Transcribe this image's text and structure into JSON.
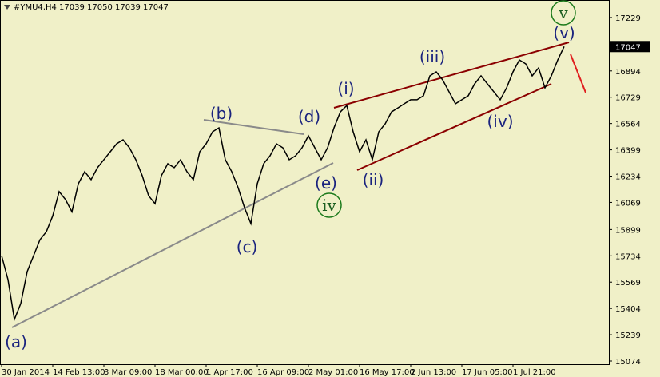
{
  "chart_data": {
    "type": "line",
    "title": "#YMU4,H4  17039 17050 17039 17047",
    "color": "#000000",
    "categories": [
      "30 Jan 2014",
      null,
      null,
      null,
      null,
      null,
      null,
      null,
      "14 Feb 13:00",
      null,
      null,
      null,
      null,
      null,
      null,
      null,
      "3 Mar 09:00",
      null,
      null,
      null,
      null,
      null,
      null,
      null,
      "18 Mar 00:00",
      null,
      null,
      null,
      null,
      null,
      null,
      null,
      "1 Apr 17:00",
      null,
      null,
      null,
      null,
      null,
      null,
      null,
      "16 Apr 09:00",
      null,
      null,
      null,
      null,
      null,
      null,
      null,
      "2 May 01:00",
      null,
      null,
      null,
      null,
      null,
      null,
      null,
      "16 May 17:00",
      null,
      null,
      null,
      null,
      null,
      null,
      null,
      "2 Jun 13:00",
      null,
      null,
      null,
      null,
      null,
      null,
      null,
      "17 Jun 05:00",
      null,
      null,
      null,
      null,
      null,
      null,
      null,
      "1 Jul 21:00",
      null,
      null,
      null,
      null,
      null,
      null,
      null,
      null
    ],
    "values": [
      15735,
      15585,
      15335,
      15435,
      15635,
      15735,
      15835,
      15885,
      15985,
      16137,
      16087,
      16010,
      16186,
      16262,
      16212,
      16287,
      16337,
      16387,
      16437,
      16462,
      16412,
      16337,
      16237,
      16111,
      16061,
      16237,
      16312,
      16287,
      16337,
      16262,
      16212,
      16387,
      16437,
      16512,
      16537,
      16337,
      16262,
      16162,
      16036,
      15936,
      16186,
      16312,
      16362,
      16437,
      16412,
      16337,
      16362,
      16412,
      16487,
      16412,
      16337,
      16412,
      16537,
      16637,
      16677,
      16512,
      16387,
      16462,
      16337,
      16512,
      16562,
      16637,
      16662,
      16688,
      16713,
      16713,
      16738,
      16863,
      16888,
      16838,
      16763,
      16688,
      16713,
      16738,
      16813,
      16863,
      16813,
      16763,
      16713,
      16788,
      16888,
      16963,
      16938,
      16863,
      16913,
      16788,
      16863,
      16963,
      17047
    ],
    "ylim": [
      15054,
      17339
    ],
    "yticks": [
      17229,
      16894,
      16729,
      16564,
      16399,
      16234,
      16069,
      15899,
      15734,
      15569,
      15404,
      15239,
      15074
    ],
    "last_price": 17047,
    "annotations": [
      "(a)",
      "(b)",
      "(c)",
      "(d)",
      "(e)",
      "iv",
      "(i)",
      "(ii)",
      "(iii)",
      "(iv)",
      "(v)",
      "v"
    ]
  }
}
